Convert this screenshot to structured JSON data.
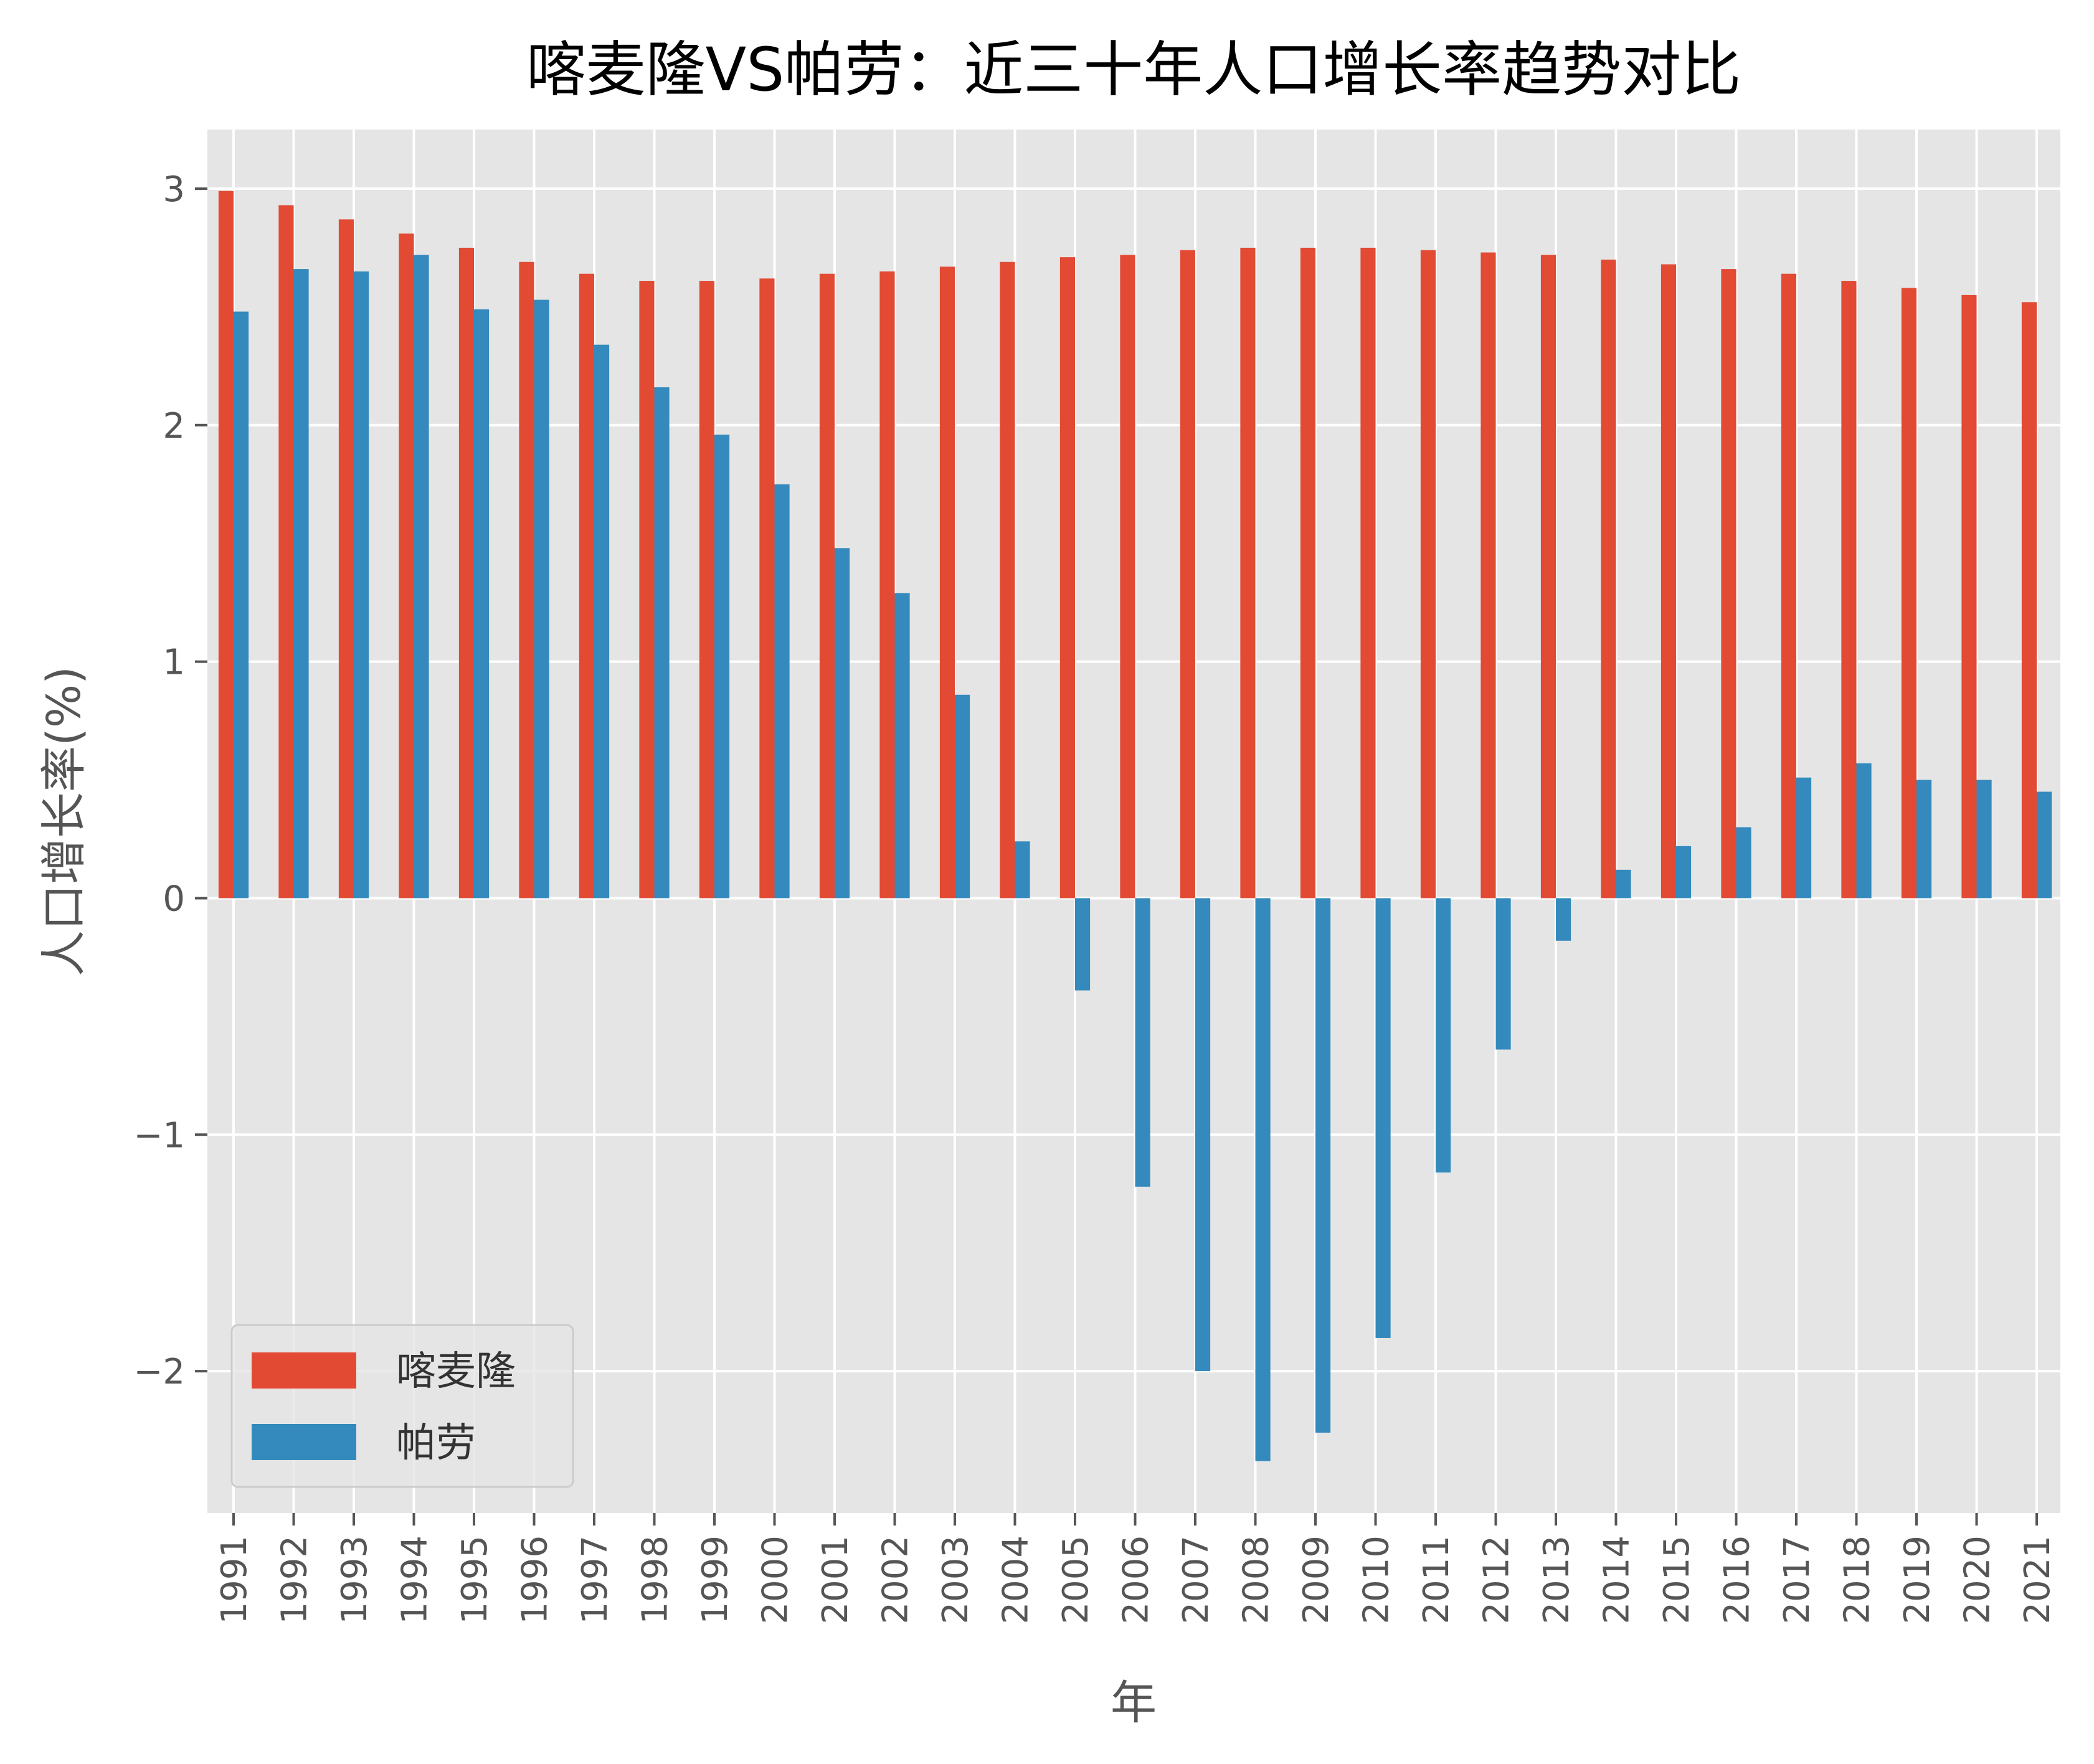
{
  "chart_data": {
    "type": "bar",
    "title": "喀麦隆VS帕劳：近三十年人口增长率趋势对比",
    "xlabel": "年",
    "ylabel": "人口增长率(%)",
    "ylim": [
      -2.6,
      3.25
    ],
    "yticks": [
      3,
      2,
      1,
      0,
      -1,
      -2
    ],
    "ytick_labels": [
      "3",
      "2",
      "1",
      "0",
      "−1",
      "−2"
    ],
    "grid": true,
    "legend_position": "lower-left",
    "categories": [
      "1991",
      "1992",
      "1993",
      "1994",
      "1995",
      "1996",
      "1997",
      "1998",
      "1999",
      "2000",
      "2001",
      "2002",
      "2003",
      "2004",
      "2005",
      "2006",
      "2007",
      "2008",
      "2009",
      "2010",
      "2011",
      "2012",
      "2013",
      "2014",
      "2015",
      "2016",
      "2017",
      "2018",
      "2019",
      "2020",
      "2021"
    ],
    "series": [
      {
        "name": "喀麦隆",
        "color": "#E24A33",
        "values": [
          2.99,
          2.93,
          2.87,
          2.81,
          2.75,
          2.69,
          2.64,
          2.61,
          2.61,
          2.62,
          2.64,
          2.65,
          2.67,
          2.69,
          2.71,
          2.72,
          2.74,
          2.75,
          2.75,
          2.75,
          2.74,
          2.73,
          2.72,
          2.7,
          2.68,
          2.66,
          2.64,
          2.61,
          2.58,
          2.55,
          2.52
        ]
      },
      {
        "name": "帕劳",
        "color": "#348ABD",
        "values": [
          2.48,
          2.66,
          2.65,
          2.72,
          2.49,
          2.53,
          2.34,
          2.16,
          1.96,
          1.75,
          1.48,
          1.29,
          0.86,
          0.24,
          -0.39,
          -1.22,
          -2.0,
          -2.38,
          -2.26,
          -1.86,
          -1.16,
          -0.64,
          -0.18,
          0.12,
          0.22,
          0.3,
          0.51,
          0.57,
          0.5,
          0.5,
          0.45
        ]
      }
    ]
  }
}
